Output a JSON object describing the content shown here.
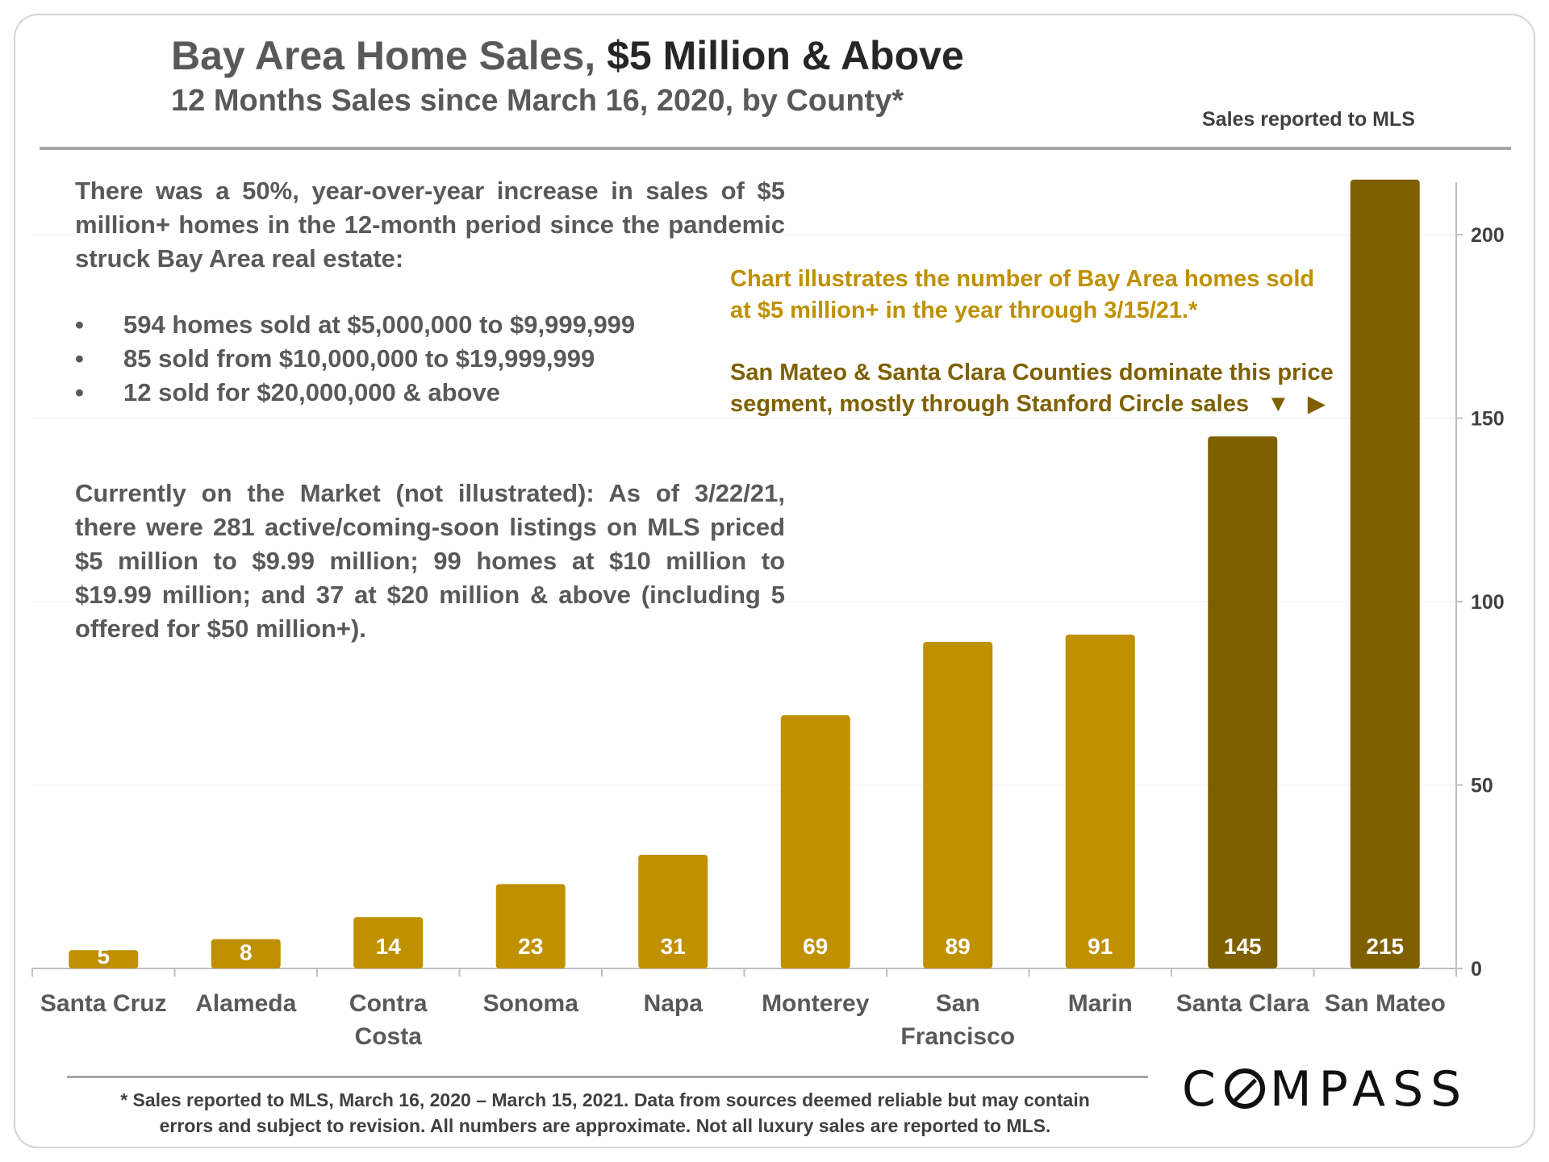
{
  "header": {
    "title_part1": "Bay Area Home Sales,",
    "title_part2": "$5 Million & Above",
    "subtitle": "12 Months Sales since March 16, 2020, by County*",
    "source": "Sales reported to MLS"
  },
  "text": {
    "intro": "There was a 50%, year-over-year increase in sales of $5 million+ homes in the 12-month period since the pandemic struck Bay Area real estate:",
    "bullet_char": "•",
    "bullets": [
      "594 homes sold at $5,000,000 to $9,999,999",
      "85 sold from $10,000,000 to $19,999,999",
      "12 sold for $20,000,000 & above"
    ],
    "market": "Currently on the Market (not illustrated): As of 3/22/21, there were 281 active/coming-soon listings on MLS priced $5 million to $9.99 million; 99 homes at $10 million to $19.99 million; and 37 at $20 million & above (including 5 offered for $50 million+)."
  },
  "annotations": {
    "note1_line1": "Chart illustrates the number of Bay Area homes sold",
    "note1_line2": "at $5 million+ in the year through 3/15/21.*",
    "note2_line1": "San Mateo & Santa Clara Counties dominate this price",
    "note2_line2": "segment, mostly through Stanford Circle sales",
    "arrow_down": "▼",
    "arrow_right": "▶"
  },
  "chart_data": {
    "type": "bar",
    "title": "Bay Area Home Sales, $5 Million & Above",
    "xlabel": "",
    "ylabel": "",
    "ylim": [
      0,
      220
    ],
    "yticks": [
      0,
      50,
      100,
      150,
      200
    ],
    "y_axis_side": "right",
    "grid": true,
    "categories": [
      "Santa Cruz",
      "Alameda",
      "Contra Costa",
      "Sonoma",
      "Napa",
      "Monterey",
      "San Francisco",
      "Marin",
      "Santa Clara",
      "San Mateo"
    ],
    "category_lines": [
      [
        "Santa Cruz"
      ],
      [
        "Alameda"
      ],
      [
        "Contra",
        "Costa"
      ],
      [
        "Sonoma"
      ],
      [
        "Napa"
      ],
      [
        "Monterey"
      ],
      [
        "San",
        "Francisco"
      ],
      [
        "Marin"
      ],
      [
        "Santa Clara"
      ],
      [
        "San Mateo"
      ]
    ],
    "values": [
      5,
      8,
      14,
      23,
      31,
      69,
      89,
      91,
      145,
      215
    ],
    "bar_colors": [
      "#bf9000",
      "#bf9000",
      "#bf9000",
      "#bf9000",
      "#bf9000",
      "#bf9000",
      "#bf9000",
      "#bf9000",
      "#7f6000",
      "#7f6000"
    ],
    "label_color": "#ffffff"
  },
  "footer": {
    "footnote_line1": "* Sales reported to MLS, March 16, 2020 – March 15, 2021. Data from sources deemed reliable but may contain",
    "footnote_line2": "errors and subject to revision.  All numbers are approximate. Not all luxury sales are reported to MLS.",
    "logo_c": "C",
    "logo_rest": "MPASS"
  }
}
